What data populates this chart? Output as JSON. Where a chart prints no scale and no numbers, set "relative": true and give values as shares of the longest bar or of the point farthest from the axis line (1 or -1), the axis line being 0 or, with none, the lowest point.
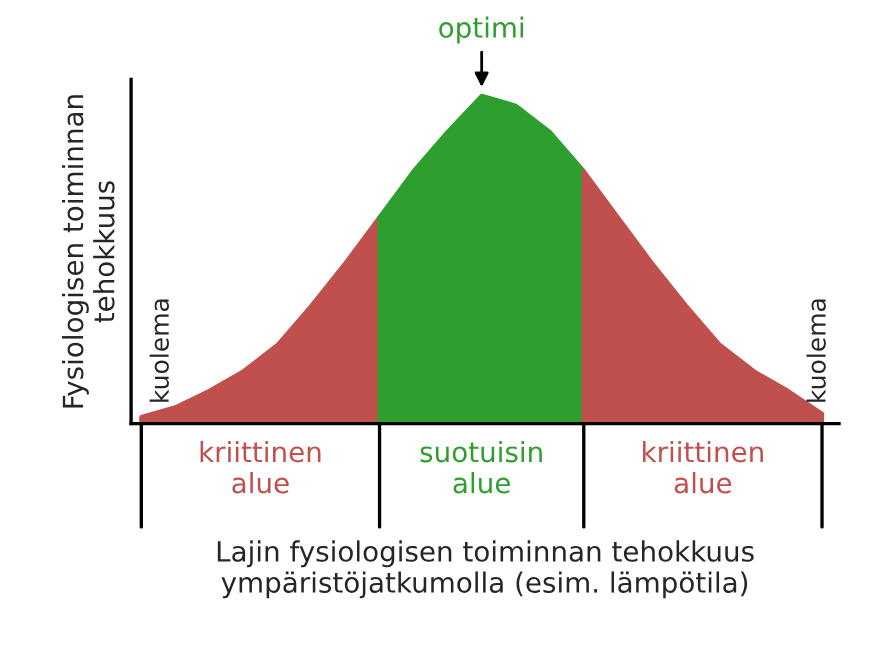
{
  "chart_data": {
    "type": "area",
    "relative": true,
    "ylabel": "Fysiologisen toiminnan\ntehokkuus",
    "xlabel": "Lajin fysiologisen toiminnan tehokkuus\nympäristöjatkumolla (esim. lämpötila)",
    "categories": [
      null,
      null,
      null,
      null,
      null,
      null,
      null,
      null,
      null,
      null,
      null,
      null,
      null,
      null,
      null,
      null,
      null,
      null,
      null,
      null,
      null
    ],
    "series": [
      {
        "name": "kriittinen\nalue",
        "color": "#c0504d",
        "values": [
          0.02,
          0.05,
          0.1,
          0.16,
          0.24,
          0.36,
          0.49,
          0.63,
          null,
          null,
          null,
          null,
          null,
          null,
          null,
          null,
          null,
          null,
          null,
          null,
          null
        ]
      },
      {
        "name": "suotuisin\nalue",
        "color": "#2e9e2e",
        "values": [
          null,
          null,
          null,
          null,
          null,
          null,
          null,
          0.63,
          0.77,
          0.89,
          1,
          0.97,
          0.89,
          0.77,
          null,
          null,
          null,
          null,
          null,
          null,
          null
        ]
      },
      {
        "name": "kriittinen\nalue",
        "color": "#c0504d",
        "values": [
          null,
          null,
          null,
          null,
          null,
          null,
          null,
          null,
          null,
          null,
          null,
          null,
          null,
          0.77,
          0.63,
          0.49,
          0.36,
          0.24,
          0.16,
          0.1,
          0.03
        ]
      }
    ],
    "annotations": [
      {
        "text": "optimi",
        "y": 1
      },
      "kuolema",
      "kuolema"
    ]
  }
}
